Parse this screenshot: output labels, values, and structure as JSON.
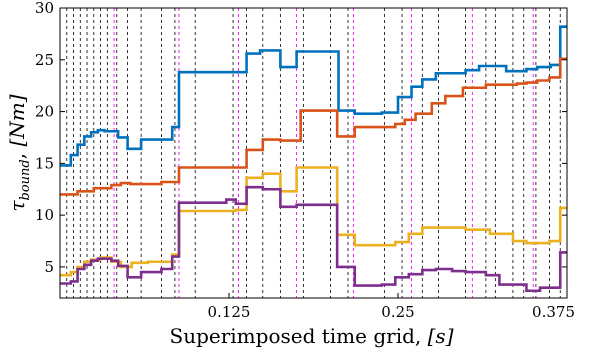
{
  "chart_data": {
    "type": "line",
    "step": true,
    "xlabel_text": "Superimposed time grid, ",
    "xlabel_unit": "[s]",
    "ylabel_symbol": "τ",
    "ylabel_sub": "bound",
    "ylabel_rest": ", ",
    "ylabel_unit": "[Nm]",
    "xlim": [
      0,
      0.375
    ],
    "ylim": [
      2,
      30
    ],
    "xticks": [
      0.125,
      0.25,
      0.375
    ],
    "xtick_labels": [
      "0.125",
      "0.25",
      "0.375"
    ],
    "yticks": [
      5,
      10,
      15,
      20,
      25,
      30
    ],
    "ytick_labels": [
      "5",
      "10",
      "15",
      "20",
      "25",
      "30"
    ],
    "grid_black_dashed_x": [
      0.005,
      0.01,
      0.015,
      0.02,
      0.025,
      0.03,
      0.035,
      0.042,
      0.05,
      0.06,
      0.075,
      0.085,
      0.1,
      0.128,
      0.138,
      0.15,
      0.163,
      0.18,
      0.2,
      0.213,
      0.24,
      0.253,
      0.268,
      0.28,
      0.3,
      0.315,
      0.322,
      0.335,
      0.343,
      0.352,
      0.362,
      0.37
    ],
    "grid_magenta_dashed_x": [
      0.04,
      0.088,
      0.132,
      0.175,
      0.217,
      0.26,
      0.305,
      0.35
    ],
    "series": [
      {
        "color": "#0072BD",
        "x": [
          0,
          0.008,
          0.013,
          0.018,
          0.023,
          0.028,
          0.033,
          0.043,
          0.05,
          0.06,
          0.075,
          0.083,
          0.088,
          0.13,
          0.138,
          0.148,
          0.163,
          0.175,
          0.19,
          0.206,
          0.218,
          0.238,
          0.25,
          0.26,
          0.268,
          0.278,
          0.3,
          0.31,
          0.318,
          0.33,
          0.345,
          0.353,
          0.363,
          0.37,
          0.375
        ],
        "y": [
          14.8,
          15.8,
          16.8,
          17.6,
          18.0,
          18.2,
          18.1,
          17.5,
          16.4,
          17.3,
          17.3,
          18.5,
          23.8,
          23.8,
          25.6,
          25.9,
          24.3,
          25.8,
          25.8,
          20.1,
          19.8,
          19.9,
          21.4,
          22.4,
          23.1,
          23.7,
          24.0,
          24.4,
          24.4,
          23.9,
          24.1,
          24.3,
          24.5,
          28.2,
          28.2
        ]
      },
      {
        "color": "#D95319",
        "x": [
          0,
          0.013,
          0.025,
          0.038,
          0.045,
          0.052,
          0.075,
          0.088,
          0.13,
          0.138,
          0.15,
          0.163,
          0.178,
          0.205,
          0.218,
          0.248,
          0.255,
          0.263,
          0.275,
          0.285,
          0.298,
          0.315,
          0.325,
          0.338,
          0.345,
          0.353,
          0.362,
          0.37,
          0.375
        ],
        "y": [
          12.0,
          12.3,
          12.6,
          12.9,
          13.1,
          13.0,
          13.2,
          14.6,
          14.6,
          16.3,
          17.3,
          17.2,
          20.1,
          17.6,
          18.5,
          18.8,
          19.2,
          19.8,
          20.8,
          21.5,
          22.3,
          22.6,
          22.6,
          22.7,
          22.8,
          23.0,
          23.3,
          25.1,
          25.1
        ]
      },
      {
        "color": "#EDB120",
        "x": [
          0,
          0.008,
          0.013,
          0.018,
          0.023,
          0.03,
          0.038,
          0.045,
          0.053,
          0.065,
          0.083,
          0.088,
          0.13,
          0.138,
          0.15,
          0.163,
          0.175,
          0.205,
          0.218,
          0.248,
          0.258,
          0.268,
          0.278,
          0.3,
          0.318,
          0.335,
          0.345,
          0.362,
          0.37,
          0.375
        ],
        "y": [
          4.2,
          4.5,
          5.0,
          5.5,
          5.7,
          5.9,
          5.5,
          5.0,
          5.4,
          5.5,
          6.2,
          10.4,
          10.5,
          13.6,
          14.0,
          12.3,
          14.6,
          8.1,
          7.1,
          7.4,
          8.2,
          8.8,
          8.8,
          8.6,
          8.2,
          7.5,
          7.3,
          7.5,
          10.7,
          10.7
        ]
      },
      {
        "color": "#7E2F8E",
        "x": [
          0,
          0.008,
          0.013,
          0.018,
          0.023,
          0.028,
          0.038,
          0.043,
          0.05,
          0.06,
          0.075,
          0.083,
          0.088,
          0.123,
          0.13,
          0.138,
          0.15,
          0.163,
          0.175,
          0.205,
          0.218,
          0.238,
          0.248,
          0.258,
          0.268,
          0.278,
          0.29,
          0.3,
          0.315,
          0.325,
          0.345,
          0.355,
          0.37,
          0.375
        ],
        "y": [
          3.4,
          3.6,
          4.8,
          5.2,
          5.6,
          5.8,
          5.6,
          5.1,
          4.0,
          4.5,
          4.8,
          6.0,
          11.2,
          11.5,
          11.1,
          12.7,
          12.5,
          10.8,
          11.0,
          5.0,
          3.2,
          3.3,
          4.0,
          4.3,
          4.7,
          4.8,
          4.6,
          4.5,
          4.2,
          3.3,
          2.7,
          3.0,
          6.4,
          6.4
        ]
      }
    ]
  }
}
